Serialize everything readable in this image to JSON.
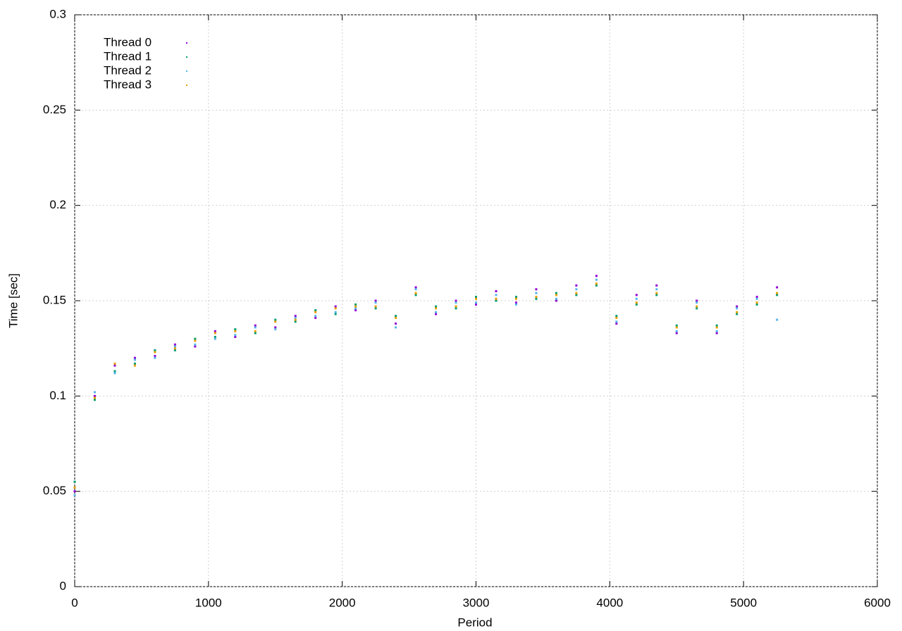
{
  "chart_data": {
    "type": "scatter",
    "xlabel": "Period",
    "ylabel": "Time [sec]",
    "x": [
      0,
      150,
      300,
      450,
      600,
      750,
      900,
      1050,
      1200,
      1350,
      1500,
      1650,
      1800,
      1950,
      2100,
      2250,
      2400,
      2550,
      2700,
      2850,
      3000,
      3150,
      3300,
      3450,
      3600,
      3750,
      3900,
      4050,
      4200,
      4350,
      4500,
      4650,
      4800,
      4950,
      5100,
      5250
    ],
    "series": [
      {
        "name": "Thread 0",
        "color": "#9400d3",
        "values": [
          0.05,
          0.1,
          0.116,
          0.12,
          0.121,
          0.127,
          0.126,
          0.134,
          0.131,
          0.137,
          0.136,
          0.142,
          0.141,
          0.147,
          0.145,
          0.15,
          0.138,
          0.157,
          0.143,
          0.15,
          0.148,
          0.155,
          0.149,
          0.156,
          0.15,
          0.158,
          0.163,
          0.138,
          0.153,
          0.158,
          0.133,
          0.15,
          0.133,
          0.147,
          0.152,
          0.157
        ]
      },
      {
        "name": "Thread 1",
        "color": "#009e73",
        "values": [
          0.055,
          0.098,
          0.113,
          0.117,
          0.124,
          0.124,
          0.13,
          0.131,
          0.135,
          0.133,
          0.14,
          0.139,
          0.145,
          0.143,
          0.148,
          0.146,
          0.142,
          0.153,
          0.147,
          0.146,
          0.152,
          0.15,
          0.152,
          0.151,
          0.154,
          0.153,
          0.158,
          0.142,
          0.148,
          0.153,
          0.137,
          0.146,
          0.137,
          0.143,
          0.148,
          0.153
        ]
      },
      {
        "name": "Thread 2",
        "color": "#56b4e9",
        "values": [
          0.048,
          0.102,
          0.112,
          0.119,
          0.12,
          0.126,
          0.127,
          0.13,
          0.132,
          0.136,
          0.135,
          0.141,
          0.142,
          0.144,
          0.146,
          0.149,
          0.136,
          0.156,
          0.144,
          0.149,
          0.149,
          0.153,
          0.148,
          0.154,
          0.151,
          0.156,
          0.161,
          0.139,
          0.151,
          0.156,
          0.134,
          0.149,
          0.134,
          0.146,
          0.151,
          0.14
        ]
      },
      {
        "name": "Thread 3",
        "color": "#e69f00",
        "values": [
          0.052,
          0.099,
          0.117,
          0.116,
          0.123,
          0.125,
          0.129,
          0.133,
          0.134,
          0.134,
          0.139,
          0.14,
          0.144,
          0.146,
          0.147,
          0.147,
          0.141,
          0.154,
          0.146,
          0.147,
          0.151,
          0.151,
          0.151,
          0.152,
          0.153,
          0.154,
          0.159,
          0.141,
          0.149,
          0.154,
          0.136,
          0.147,
          0.136,
          0.144,
          0.149,
          0.154
        ]
      }
    ],
    "xlim": [
      0,
      6000
    ],
    "xticks": [
      0,
      1000,
      2000,
      3000,
      4000,
      5000,
      6000
    ],
    "ylim": [
      0,
      0.3
    ],
    "yticks": [
      0,
      0.05,
      0.1,
      0.15,
      0.2,
      0.25,
      0.3
    ],
    "grid": true,
    "legend": "top-left"
  }
}
